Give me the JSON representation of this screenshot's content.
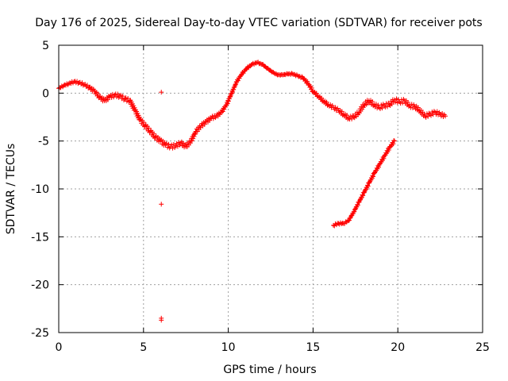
{
  "chart_data": {
    "type": "scatter",
    "title": "Day 176 of 2025, Sidereal Day-to-day VTEC variation (SDTVAR) for receiver pots",
    "xlabel": "GPS time / hours",
    "ylabel": "SDTVAR / TECUs",
    "xlim": [
      0,
      25
    ],
    "ylim": [
      -25,
      5
    ],
    "xticks": [
      0,
      5,
      10,
      15,
      20,
      25
    ],
    "yticks": [
      5,
      0,
      -5,
      -10,
      -15,
      -20,
      -25
    ],
    "grid": true,
    "marker": "+",
    "color": "#ff0000",
    "series": [
      {
        "name": "main trace",
        "x": [
          0.0,
          0.3,
          0.6,
          0.9,
          1.2,
          1.5,
          1.8,
          2.1,
          2.4,
          2.7,
          3.0,
          3.3,
          3.6,
          3.9,
          4.2,
          4.5,
          4.8,
          5.1,
          5.4,
          5.7,
          6.0,
          6.3,
          6.6,
          6.9,
          7.2,
          7.5,
          7.8,
          8.1,
          8.4,
          8.7,
          9.0,
          9.3,
          9.6,
          9.9,
          10.2,
          10.5,
          10.8,
          11.1,
          11.4,
          11.7,
          12.0,
          12.3,
          12.6,
          12.9,
          13.2,
          13.5,
          13.8,
          14.1,
          14.4,
          14.7,
          15.0,
          15.3,
          15.6,
          15.9,
          16.2,
          16.5,
          16.8,
          17.1,
          17.4,
          17.7,
          18.0,
          18.3,
          18.6,
          18.9,
          19.2,
          19.5,
          19.8,
          20.1,
          20.4,
          20.7,
          21.0,
          21.3,
          21.6,
          21.9,
          22.2,
          22.5,
          22.8
        ],
        "y": [
          0.5,
          0.8,
          1.0,
          1.2,
          1.1,
          0.9,
          0.6,
          0.2,
          -0.4,
          -0.8,
          -0.4,
          -0.2,
          -0.3,
          -0.6,
          -0.8,
          -1.8,
          -2.8,
          -3.4,
          -4.0,
          -4.6,
          -5.0,
          -5.4,
          -5.6,
          -5.5,
          -5.2,
          -5.6,
          -5.0,
          -4.0,
          -3.4,
          -3.0,
          -2.6,
          -2.4,
          -2.0,
          -1.2,
          0.0,
          1.2,
          2.0,
          2.6,
          3.0,
          3.2,
          3.0,
          2.6,
          2.2,
          1.9,
          1.9,
          2.0,
          2.0,
          1.8,
          1.6,
          1.0,
          0.2,
          -0.3,
          -0.8,
          -1.2,
          -1.5,
          -1.8,
          -2.2,
          -2.6,
          -2.5,
          -2.0,
          -1.2,
          -0.8,
          -1.2,
          -1.5,
          -1.3,
          -1.2,
          -0.7,
          -0.9,
          -0.8,
          -1.3,
          -1.4,
          -1.8,
          -2.4,
          -2.2,
          -2.0,
          -2.2,
          -2.4
        ]
      },
      {
        "name": "rising trace",
        "x": [
          16.2,
          16.5,
          16.8,
          17.1,
          17.4,
          17.7,
          18.0,
          18.3,
          18.6,
          18.9,
          19.2,
          19.5,
          19.8
        ],
        "y": [
          -13.8,
          -13.6,
          -13.6,
          -13.3,
          -12.4,
          -11.4,
          -10.4,
          -9.4,
          -8.4,
          -7.5,
          -6.6,
          -5.7,
          -5.0
        ]
      },
      {
        "name": "outliers",
        "x": [
          6.05,
          6.05,
          6.05,
          6.05
        ],
        "y": [
          0.1,
          -11.6,
          -23.5,
          -23.7
        ]
      }
    ]
  }
}
